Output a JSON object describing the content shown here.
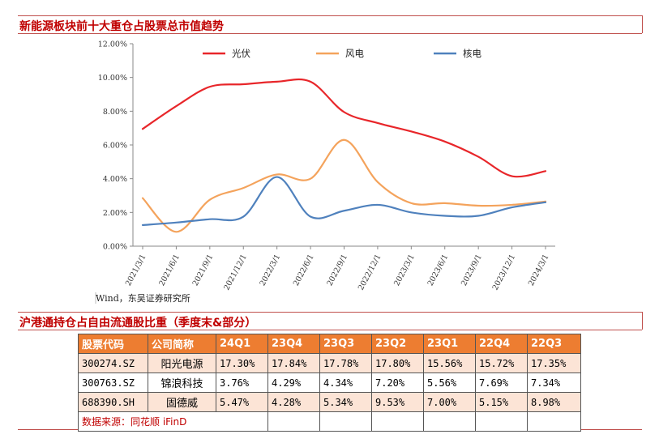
{
  "section1_title": "新能源板块前十大重仓占股票总市值趋势",
  "section2_title": "沪港通持仓占自由流通股比重（季度末&部分）",
  "source_text": "Wind，东吴证券研究所",
  "table": {
    "headers": [
      "股票代码",
      "公司简称",
      "24Q1",
      "23Q4",
      "23Q3",
      "23Q2",
      "23Q1",
      "22Q4",
      "22Q3"
    ],
    "rows": [
      {
        "code": "300274.SZ",
        "name": "阳光电源",
        "values": [
          "17.30%",
          "17.84%",
          "17.78%",
          "17.80%",
          "15.56%",
          "15.72%",
          "17.35%"
        ]
      },
      {
        "code": "300763.SZ",
        "name": "锦浪科技",
        "values": [
          "3.76%",
          "4.29%",
          "4.34%",
          "7.20%",
          "5.56%",
          "7.69%",
          "7.34%"
        ]
      },
      {
        "code": "688390.SH",
        "name": "固德威",
        "values": [
          "5.47%",
          "4.28%",
          "5.34%",
          "9.53%",
          "7.00%",
          "5.15%",
          "8.98%"
        ]
      }
    ],
    "note": "数据来源：同花顺 iFinD"
  },
  "chart_data": {
    "type": "line",
    "title": "",
    "x": [
      "2021/3/1",
      "2021/6/1",
      "2021/9/1",
      "2021/12/1",
      "2022/3/1",
      "2022/6/1",
      "2022/9/1",
      "2022/12/1",
      "2023/3/1",
      "2023/6/1",
      "2023/9/1",
      "2023/12/1",
      "2024/3/1"
    ],
    "ylim": [
      0,
      12
    ],
    "yticks": [
      "0.00%",
      "2.00%",
      "4.00%",
      "6.00%",
      "8.00%",
      "10.00%",
      "12.00%"
    ],
    "grid": false,
    "legend_position": "top",
    "series": [
      {
        "name": "光伏",
        "color": "#e8262a",
        "values": [
          6.95,
          8.3,
          9.45,
          9.6,
          9.75,
          9.75,
          7.95,
          7.3,
          6.8,
          6.2,
          5.3,
          4.15,
          4.45
        ]
      },
      {
        "name": "风电",
        "color": "#f4a35c",
        "values": [
          2.85,
          0.85,
          2.75,
          3.45,
          4.25,
          4.0,
          6.3,
          3.8,
          2.55,
          2.55,
          2.4,
          2.45,
          2.65
        ]
      },
      {
        "name": "核电",
        "color": "#4f81bd",
        "values": [
          1.25,
          1.4,
          1.6,
          1.75,
          4.1,
          1.75,
          2.1,
          2.45,
          2.0,
          1.8,
          1.8,
          2.3,
          2.6
        ]
      }
    ]
  }
}
